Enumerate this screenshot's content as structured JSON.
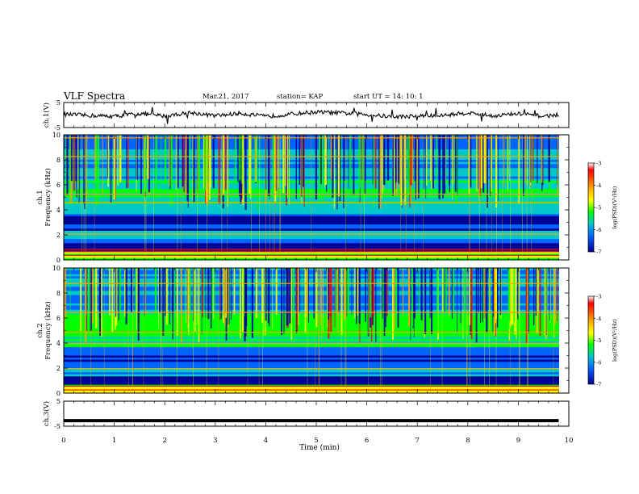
{
  "header": {
    "title": "VLF Spectra",
    "date": "Mar.21, 2017",
    "station": "station= KAP",
    "start": "start  UT =   14: 10: 1"
  },
  "colorbar": {
    "label": "log(PSD)(V²/Hz)",
    "ticks": [
      "-3",
      "-4",
      "-5",
      "-6",
      "-7"
    ],
    "colors": [
      "#ff0000",
      "#ffa500",
      "#ffff00",
      "#00ff00",
      "#00c8c8",
      "#0064ff",
      "#000096"
    ]
  },
  "chart_data": [
    {
      "type": "line",
      "panel": "ch1-waveform",
      "ylabel": "ch.1(V)",
      "yticks": [
        "5",
        "-5"
      ],
      "ylim": [
        -5,
        5
      ],
      "xlim": [
        0,
        10
      ],
      "x": [
        0,
        0.5,
        1,
        1.5,
        2,
        2.5,
        3,
        3.5,
        4,
        4.5,
        5,
        5.5,
        6,
        6.5,
        7,
        7.5,
        8,
        8.5,
        9,
        9.5,
        9.8
      ],
      "y": [
        0.3,
        -0.2,
        -0.5,
        0.6,
        -0.4,
        1.0,
        -0.3,
        0.7,
        -0.6,
        0.4,
        1.2,
        0.8,
        0.2,
        -0.7,
        -0.4,
        -0.2,
        0.9,
        -0.3,
        0.5,
        -0.5,
        0.2
      ]
    },
    {
      "type": "heatmap",
      "panel": "ch1-spectrogram",
      "ylabel": "ch.1 Frequency (kHz)",
      "yticks": [
        "0",
        "2",
        "4",
        "6",
        "8",
        "10"
      ],
      "ylim": [
        0,
        10
      ],
      "xlim": [
        0,
        10
      ],
      "zlabel": "log(PSD)(V²/Hz)",
      "zlim": [
        -7,
        -3
      ]
    },
    {
      "type": "heatmap",
      "panel": "ch2-spectrogram",
      "ylabel": "ch.2 Frequency (kHz)",
      "yticks": [
        "0",
        "2",
        "4",
        "6",
        "8",
        "10"
      ],
      "ylim": [
        0,
        10
      ],
      "xlim": [
        0,
        10
      ],
      "zlabel": "log(PSD)(V²/Hz)",
      "zlim": [
        -7,
        -3
      ]
    },
    {
      "type": "line",
      "panel": "ch3-waveform",
      "ylabel": "ch.3(V)",
      "yticks": [
        "5",
        "-5"
      ],
      "ylim": [
        -5,
        5
      ],
      "xlim": [
        0,
        10
      ],
      "x": [
        0,
        9.8
      ],
      "y": [
        -2.8,
        -2.8
      ],
      "xlabel": "Time (min)",
      "xticks": [
        "0",
        "1",
        "2",
        "3",
        "4",
        "5",
        "6",
        "7",
        "8",
        "9",
        "10"
      ]
    }
  ]
}
